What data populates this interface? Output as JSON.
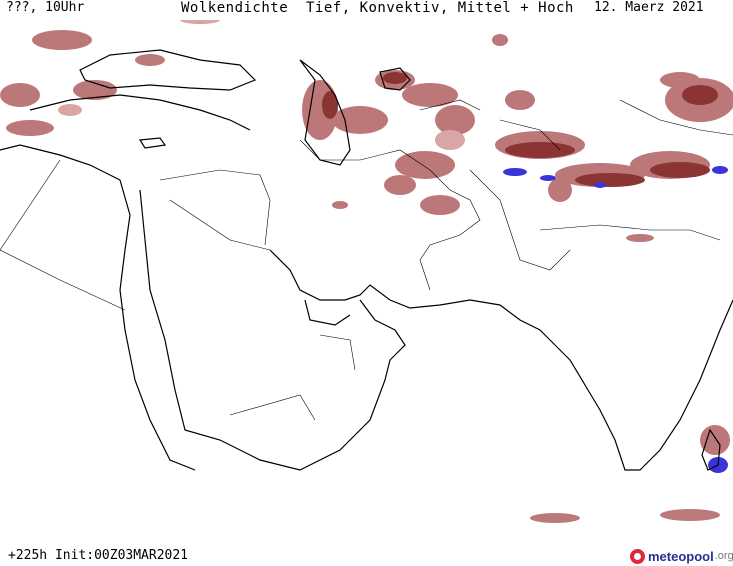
{
  "header": {
    "left": "???, 10Uhr",
    "center": "Wolkendichte  Tief, Konvektiv, Mittel + Hoch",
    "right": "12. Maerz 2021"
  },
  "footer": {
    "run_info": "+225h Init:00Z03MAR2021",
    "brand_name": "meteopool",
    "brand_tld": ".org"
  },
  "colors": {
    "cloud_medium": "#b56a6a",
    "cloud_dense": "#8a3434",
    "cloud_light": "#d9a6a6",
    "convective": "#3a34d6",
    "coastline": "#000000",
    "border": "#000000"
  },
  "icons": {
    "brand_logo": "meteopool-logo-icon"
  }
}
